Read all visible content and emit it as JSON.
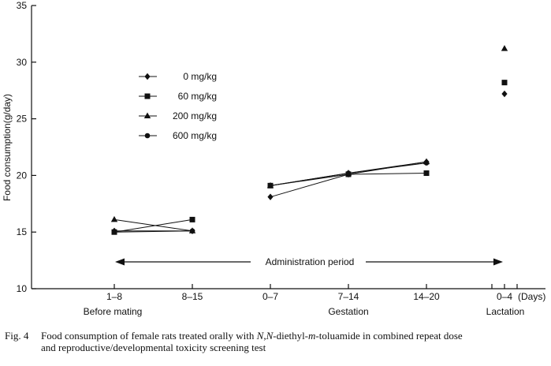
{
  "chart_data": {
    "type": "line",
    "ylabel": "Food consumption(g/day)",
    "ylim": [
      10,
      35
    ],
    "y_ticks": [
      10,
      15,
      20,
      25,
      30,
      35
    ],
    "x_ticks": [
      "1–8",
      "8–15",
      "0–7",
      "7–14",
      "14–20",
      "0–4"
    ],
    "x_unit_label": "(Days)",
    "groups": [
      "Before mating",
      "Gestation",
      "Lactation"
    ],
    "arrow_label": "Administration period",
    "legend": [
      "0 mg/kg",
      "60 mg/kg",
      "200 mg/kg",
      "600 mg/kg"
    ],
    "series": [
      {
        "name": "0 mg/kg",
        "marker": "diamond",
        "segments": [
          [
            0,
            1
          ],
          [
            2,
            3,
            4
          ],
          [
            5
          ]
        ],
        "values": [
          15.1,
          15.1,
          18.1,
          20.1,
          21.2,
          27.2
        ]
      },
      {
        "name": "60 mg/kg",
        "marker": "square",
        "segments": [
          [
            0,
            1
          ],
          [
            2,
            3,
            4
          ],
          [
            5
          ]
        ],
        "values": [
          15.0,
          16.1,
          19.1,
          20.1,
          20.2,
          28.2
        ]
      },
      {
        "name": "200 mg/kg",
        "marker": "triangle",
        "segments": [
          [
            0,
            1
          ],
          [
            2,
            3,
            4
          ],
          [
            5
          ]
        ],
        "values": [
          16.1,
          15.1,
          19.1,
          20.2,
          21.2,
          31.2
        ]
      },
      {
        "name": "600 mg/kg",
        "marker": "circle",
        "segments": [
          [
            0,
            1
          ],
          [
            2,
            3,
            4
          ],
          [
            5
          ]
        ],
        "values": [
          15.0,
          15.1,
          19.1,
          20.2,
          21.1,
          28.2
        ]
      }
    ]
  },
  "caption": {
    "fig_label": "Fig. 4",
    "text_before": "Food consumption of female rats treated orally with",
    "compound_n1": "N",
    "compound_sep": ",",
    "compound_n2": "N",
    "compound_mid": "-diethyl-",
    "compound_m": "m",
    "text_after": "-toluamide in combined repeat dose",
    "line2": "and reproductive/developmental toxicity screening test"
  }
}
